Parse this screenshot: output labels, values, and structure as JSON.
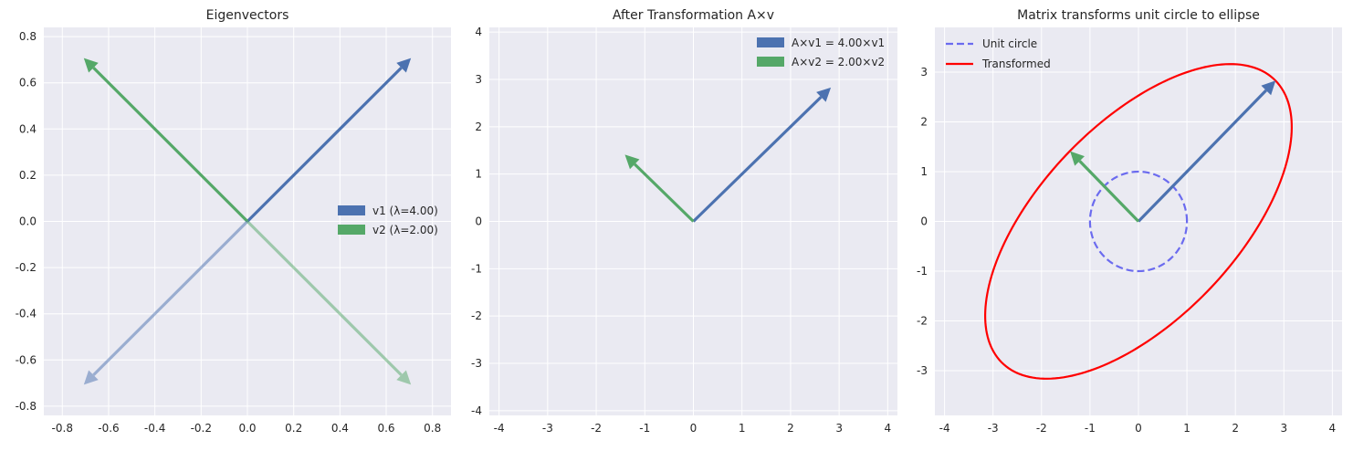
{
  "chart_data": [
    {
      "type": "vector",
      "title": "Eigenvectors",
      "xlim": [
        -0.88,
        0.88
      ],
      "ylim": [
        -0.84,
        0.84
      ],
      "xticks": [
        "-0.8",
        "-0.6",
        "-0.4",
        "-0.2",
        "0.0",
        "0.2",
        "0.4",
        "0.6",
        "0.8"
      ],
      "yticks": [
        "-0.8",
        "-0.6",
        "-0.4",
        "-0.2",
        "0.0",
        "0.2",
        "0.4",
        "0.6",
        "0.8"
      ],
      "grid": true,
      "legend_position": "center-right",
      "legend": [
        {
          "label": "v1 (λ=4.00)",
          "color": "#4c72b0"
        },
        {
          "label": "v2 (λ=2.00)",
          "color": "#55a868"
        }
      ],
      "vectors": [
        {
          "x": 0.7071,
          "y": 0.7071,
          "color": "#4c72b0",
          "alpha": 1.0
        },
        {
          "x": -0.7071,
          "y": 0.7071,
          "color": "#55a868",
          "alpha": 1.0
        },
        {
          "x": -0.7071,
          "y": -0.7071,
          "color": "#4c72b0",
          "alpha": 0.5
        },
        {
          "x": 0.7071,
          "y": -0.7071,
          "color": "#55a868",
          "alpha": 0.5
        }
      ]
    },
    {
      "type": "vector",
      "title": "After Transformation A×v",
      "xlim": [
        -4.2,
        4.2
      ],
      "ylim": [
        -4.1,
        4.1
      ],
      "xticks": [
        "-4",
        "-3",
        "-2",
        "-1",
        "0",
        "1",
        "2",
        "3",
        "4"
      ],
      "yticks": [
        "-4",
        "-3",
        "-2",
        "-1",
        "0",
        "1",
        "2",
        "3",
        "4"
      ],
      "grid": true,
      "legend_position": "top-right",
      "legend": [
        {
          "label": "A×v1 = 4.00×v1",
          "color": "#4c72b0"
        },
        {
          "label": "A×v2 = 2.00×v2",
          "color": "#55a868"
        }
      ],
      "vectors": [
        {
          "x": 2.83,
          "y": 2.83,
          "color": "#4c72b0",
          "alpha": 1.0
        },
        {
          "x": -1.41,
          "y": 1.41,
          "color": "#55a868",
          "alpha": 1.0
        }
      ]
    },
    {
      "type": "line",
      "title": "Matrix transforms unit circle to ellipse",
      "xlim": [
        -4.2,
        4.2
      ],
      "ylim": [
        -3.9,
        3.9
      ],
      "xticks": [
        "-4",
        "-3",
        "-2",
        "-1",
        "0",
        "1",
        "2",
        "3",
        "4"
      ],
      "yticks": [
        "-3",
        "-2",
        "-1",
        "0",
        "1",
        "2",
        "3"
      ],
      "grid": true,
      "legend_position": "top-left",
      "series": [
        {
          "name": "Unit circle",
          "color": "#6b6bef",
          "style": "dashed",
          "a": 1,
          "b": 1,
          "angle_deg": 0
        },
        {
          "name": "Transformed",
          "color": "#ff0000",
          "style": "solid",
          "a": 4,
          "b": 2,
          "angle_deg": 45
        }
      ],
      "vectors": [
        {
          "x": 2.83,
          "y": 2.83,
          "color": "#4c72b0",
          "alpha": 1.0
        },
        {
          "x": -1.41,
          "y": 1.41,
          "color": "#55a868",
          "alpha": 1.0
        }
      ]
    }
  ]
}
